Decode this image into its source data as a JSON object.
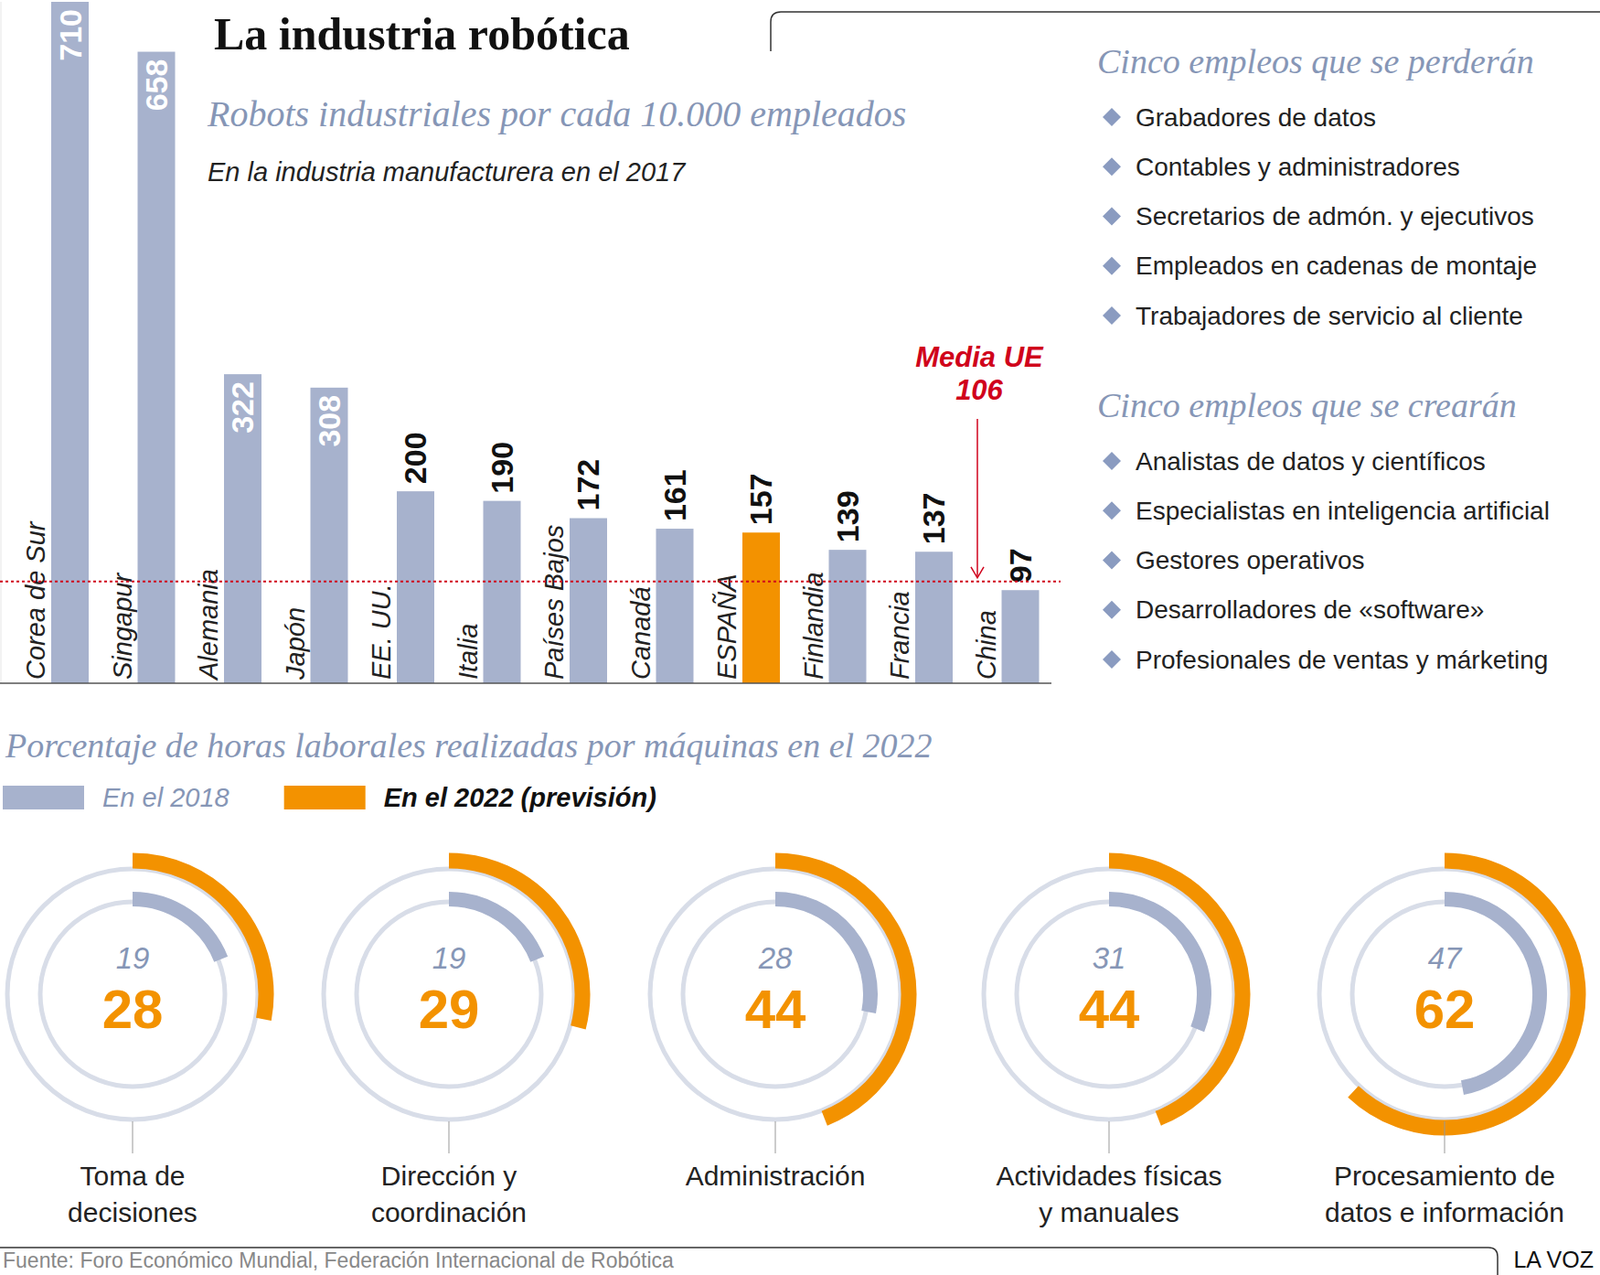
{
  "title": "La industria robótica",
  "chart_data": [
    {
      "type": "bar",
      "title": "Robots industriales por cada 10.000 empleados",
      "subtitle": "En la industria manufacturera en el 2017",
      "categories": [
        "Corea de Sur",
        "Singapur",
        "Alemania",
        "Japón",
        "EE. UU.",
        "Italia",
        "Países Bajos",
        "Canadá",
        "ESPAÑA",
        "Finlandia",
        "Francia",
        "China"
      ],
      "values": [
        710,
        658,
        322,
        308,
        200,
        190,
        172,
        161,
        157,
        139,
        137,
        97
      ],
      "colors": [
        "#a7b2cd",
        "#a7b2cd",
        "#a7b2cd",
        "#a7b2cd",
        "#a7b2cd",
        "#a7b2cd",
        "#a7b2cd",
        "#a7b2cd",
        "#f39200",
        "#a7b2cd",
        "#a7b2cd",
        "#a7b2cd"
      ],
      "ylim": [
        0,
        710
      ],
      "yticks": [],
      "tick_labels": "x",
      "data_labels": true,
      "annotations": [
        {
          "text": "Media UE",
          "value": 106
        }
      ]
    },
    {
      "type": "donut",
      "title": "Porcentaje de horas laborales realizadas por máquinas en el 2022",
      "categories": [
        "Toma de\ndecisiones",
        "Dirección y\ncoordinación",
        "Administración",
        "Actividades físicas\ny manuales",
        "Procesamiento de\ndatos e información"
      ],
      "series": [
        {
          "name": "En el 2018",
          "color": "#a7b2cd",
          "values": [
            19,
            19,
            28,
            31,
            47
          ]
        },
        {
          "name": "En el 2022 (previsión)",
          "color": "#f39200",
          "values": [
            28,
            29,
            44,
            44,
            62
          ]
        }
      ],
      "ylim": [
        0,
        100
      ],
      "legend": "top-left",
      "data_labels": true
    }
  ],
  "lists": [
    {
      "title": "Cinco empleos que se perderán",
      "items": [
        "Grabadores de datos",
        "Contables y administradores",
        "Secretarios de admón. y ejecutivos",
        "Empleados en cadenas de montaje",
        "Trabajadores de servicio al cliente"
      ]
    },
    {
      "title": "Cinco empleos que se crearán",
      "items": [
        "Analistas de datos y científicos",
        "Especialistas en inteligencia artificial",
        "Gestores operativos",
        "Desarrolladores de «software»",
        "Profesionales de ventas y márketing"
      ]
    }
  ],
  "source": "Fuente: Foro Económico Mundial, Federación Internacional de Robótica",
  "brand": "LA VOZ"
}
